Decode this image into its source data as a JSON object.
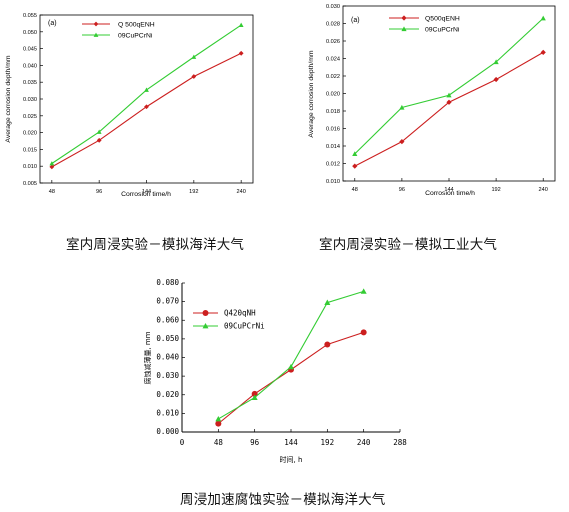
{
  "colors": {
    "series_red": "#cc1f1f",
    "series_green": "#33cc33",
    "axis": "#000000"
  },
  "captions": [
    "室内周浸实验－模拟海洋大气",
    "室内周浸实验－模拟工业大气",
    "周浸加速腐蚀实验－模拟海洋大气"
  ],
  "chart_data": [
    {
      "type": "line",
      "tag": "(a)",
      "xlabel": "Corrosion time/h",
      "ylabel": "Average corrosion depth/mm",
      "x": [
        48,
        96,
        144,
        192,
        240
      ],
      "xticks": [
        "48",
        "96",
        "144",
        "192",
        "240"
      ],
      "ylim": [
        0.005,
        0.055
      ],
      "yticks": [
        "0.005",
        "0.010",
        "0.015",
        "0.020",
        "0.025",
        "0.030",
        "0.035",
        "0.040",
        "0.045",
        "0.050",
        "0.055"
      ],
      "legend_position": "top-left",
      "series": [
        {
          "name": "Q 500qENH",
          "marker": "diamond",
          "color": "#cc1f1f",
          "values": [
            0.0098,
            0.0177,
            0.0277,
            0.0367,
            0.0436
          ]
        },
        {
          "name": "09CuPCrNi",
          "marker": "triangle",
          "color": "#33cc33",
          "values": [
            0.0108,
            0.0202,
            0.0327,
            0.0425,
            0.052
          ]
        }
      ]
    },
    {
      "type": "line",
      "tag": "(a)",
      "xlabel": "Corrosion time/h",
      "ylabel": "Average corrosion depth/mm",
      "x": [
        48,
        96,
        144,
        192,
        240
      ],
      "xticks": [
        "48",
        "96",
        "144",
        "192",
        "240"
      ],
      "ylim": [
        0.01,
        0.03
      ],
      "yticks": [
        "0.010",
        "0.012",
        "0.014",
        "0.016",
        "0.018",
        "0.020",
        "0.022",
        "0.024",
        "0.026",
        "0.028",
        "0.030"
      ],
      "legend_position": "top-left",
      "series": [
        {
          "name": "Q500qENH",
          "marker": "diamond",
          "color": "#cc1f1f",
          "values": [
            0.0117,
            0.0145,
            0.019,
            0.0216,
            0.0247
          ]
        },
        {
          "name": "09CuPCrNi",
          "marker": "triangle",
          "color": "#33cc33",
          "values": [
            0.0131,
            0.0184,
            0.0198,
            0.0236,
            0.0286
          ]
        }
      ]
    },
    {
      "type": "line",
      "tag": "",
      "xlabel": "时间, h",
      "ylabel": "腐蚀减薄量, mm",
      "x": [
        48,
        96,
        144,
        192,
        240
      ],
      "xlim": [
        0,
        288
      ],
      "xticks": [
        "0",
        "48",
        "96",
        "144",
        "192",
        "240",
        "288"
      ],
      "ylim": [
        0.0,
        0.08
      ],
      "yticks": [
        "0.000",
        "0.010",
        "0.020",
        "0.030",
        "0.040",
        "0.050",
        "0.060",
        "0.070",
        "0.080"
      ],
      "legend_position": "top-left",
      "series": [
        {
          "name": "Q420qNH",
          "marker": "circle",
          "color": "#cc1f1f",
          "values": [
            0.0045,
            0.0205,
            0.0335,
            0.047,
            0.0535
          ]
        },
        {
          "name": "09CuPCrNi",
          "marker": "triangle",
          "color": "#33cc33",
          "values": [
            0.007,
            0.0185,
            0.035,
            0.0695,
            0.0755
          ]
        }
      ]
    }
  ]
}
